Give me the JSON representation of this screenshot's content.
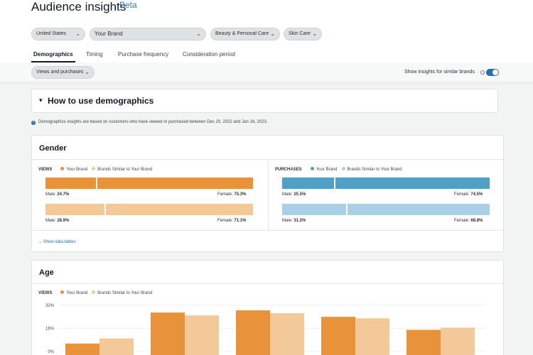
{
  "header": {
    "title": "Audience insights",
    "beta": "Beta"
  },
  "filters": {
    "country": "United States",
    "brand": "Your Brand",
    "category": "Beauty & Personal Care",
    "subcategory": "Skin Care"
  },
  "tabs": [
    {
      "label": "Demographics",
      "active": true
    },
    {
      "label": "Timing"
    },
    {
      "label": "Purchase frequency"
    },
    {
      "label": "Consideration period"
    }
  ],
  "subbar": {
    "view_select": "Views and purchases",
    "toggle_label": "Show insights for similar brands",
    "toggle_on": true
  },
  "howto": {
    "label": "How to use demographics"
  },
  "note": "Demographics insights are based on customers who have viewed or purchased between Dec 20, 2022 and Jan 16, 2023.",
  "colors": {
    "views_brand": "#e8923a",
    "views_similar": "#f3c99a",
    "purchases_brand": "#4f9fc7",
    "purchases_similar": "#a9d0e6"
  },
  "gender": {
    "title": "Gender",
    "views": {
      "label": "VIEWS",
      "legend_brand": "Your Brand",
      "legend_similar": "Brands Similar to Your Brand",
      "brand": {
        "male_label": "Male:",
        "male": "24.7%",
        "female_label": "Female:",
        "female": "75.3%",
        "male_value": 24.7
      },
      "similar": {
        "male_label": "Male:",
        "male": "28.9%",
        "female_label": "Female:",
        "female": "71.1%",
        "male_value": 28.9
      }
    },
    "purchases": {
      "label": "PURCHASES",
      "legend_brand": "Your Brand",
      "legend_similar": "Brands Similar to Your Brand",
      "brand": {
        "male_label": "Male:",
        "male": "25.5%",
        "female_label": "Female:",
        "female": "74.5%",
        "male_value": 25.5
      },
      "similar": {
        "male_label": "Male:",
        "male": "31.2%",
        "female_label": "Female:",
        "female": "68.8%",
        "male_value": 31.2
      }
    },
    "show_tables": "Show data tables"
  },
  "age": {
    "title": "Age",
    "views_label": "VIEWS",
    "legend_brand": "Your Brand",
    "legend_similar": "Brands Similar to Your Brand"
  },
  "chart_data": {
    "type": "bar",
    "title": "",
    "xlabel": "",
    "ylabel": "",
    "ylim": [
      0,
      32
    ],
    "yticks": [
      "32%",
      "16%",
      "0%"
    ],
    "ytick_values": [
      32,
      16,
      0
    ],
    "series": [
      {
        "name": "Your Brand",
        "values": [
          5.5,
          27,
          28.5,
          24,
          15
        ]
      },
      {
        "name": "Brands Similar to Your Brand",
        "values": [
          9,
          25,
          26.5,
          23,
          16.5
        ]
      }
    ]
  }
}
